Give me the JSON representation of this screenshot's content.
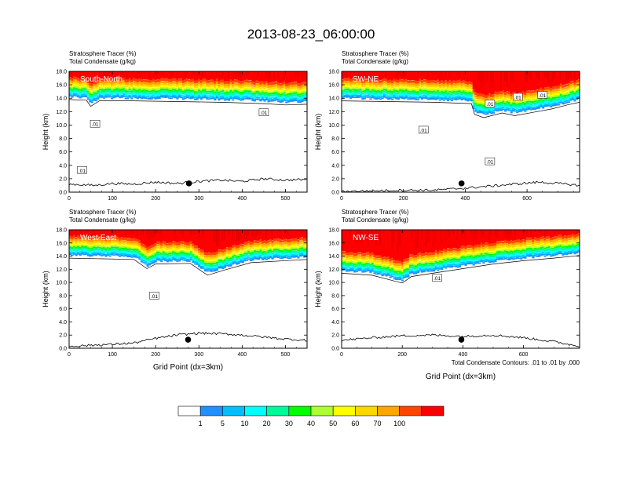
{
  "figure": {
    "title": "2013-08-23_06:00:00",
    "contour_note": "Total Condensate Contours: .01 to .01 by .000"
  },
  "chart_data": [
    {
      "type": "heatmap",
      "panel_label": "South-North",
      "subtitle_1": "Stratosphere Tracer   (%)",
      "subtitle_2": "Total Condensate   (g/kg)",
      "ylabel": "Height (km)",
      "xlabel": "",
      "xlim": [
        0,
        550
      ],
      "ylim": [
        0,
        18
      ],
      "x_ticks": [
        "0",
        "100",
        "200",
        "300",
        "400",
        "500"
      ],
      "y_ticks": [
        "0.0",
        "2.0",
        "4.0",
        "6.0",
        "8.0",
        "10.0",
        "12.0",
        "14.0",
        "16.0",
        "18.0"
      ],
      "tropopause_km": [
        [
          0,
          14.2
        ],
        [
          40,
          14.1
        ],
        [
          50,
          13.2
        ],
        [
          70,
          14.0
        ],
        [
          150,
          14.0
        ],
        [
          250,
          13.9
        ],
        [
          350,
          13.8
        ],
        [
          450,
          13.6
        ],
        [
          500,
          13.4
        ],
        [
          550,
          13.5
        ]
      ],
      "terrain_km": [
        [
          0,
          1.2
        ],
        [
          60,
          1.0
        ],
        [
          100,
          1.3
        ],
        [
          150,
          1.2
        ],
        [
          200,
          1.5
        ],
        [
          250,
          1.3
        ],
        [
          300,
          1.6
        ],
        [
          350,
          1.8
        ],
        [
          400,
          1.6
        ],
        [
          450,
          2.0
        ],
        [
          500,
          1.8
        ],
        [
          550,
          1.9
        ]
      ],
      "contour_labels": [
        {
          "text": ".01",
          "x": 60,
          "y": 10.2
        },
        {
          "text": ".01",
          "x": 30,
          "y": 3.3
        },
        {
          "text": ".01",
          "x": 450,
          "y": 11.9
        }
      ],
      "marker": {
        "x": 277,
        "y": 0.95
      }
    },
    {
      "type": "heatmap",
      "panel_label": "SW-NE",
      "subtitle_1": "Stratosphere Tracer   (%)",
      "subtitle_2": "Total Condensate   (g/kg)",
      "ylabel": "Height (km)",
      "xlabel": "",
      "xlim": [
        0,
        770
      ],
      "ylim": [
        0,
        18
      ],
      "x_ticks": [
        "0",
        "200",
        "400",
        "600"
      ],
      "y_ticks": [
        "0.0",
        "2.0",
        "4.0",
        "6.0",
        "8.0",
        "10.0",
        "12.0",
        "14.0",
        "16.0",
        "18.0"
      ],
      "tropopause_km": [
        [
          0,
          14.0
        ],
        [
          150,
          13.9
        ],
        [
          300,
          13.8
        ],
        [
          420,
          13.6
        ],
        [
          430,
          12.0
        ],
        [
          460,
          11.5
        ],
        [
          520,
          12.2
        ],
        [
          560,
          11.8
        ],
        [
          620,
          12.3
        ],
        [
          680,
          12.8
        ],
        [
          730,
          13.4
        ],
        [
          770,
          13.8
        ]
      ],
      "terrain_km": [
        [
          0,
          0.1
        ],
        [
          100,
          0.2
        ],
        [
          200,
          0.3
        ],
        [
          300,
          0.3
        ],
        [
          400,
          0.6
        ],
        [
          480,
          0.9
        ],
        [
          560,
          1.2
        ],
        [
          640,
          1.5
        ],
        [
          700,
          1.3
        ],
        [
          770,
          1.0
        ]
      ],
      "contour_labels": [
        {
          "text": ".01",
          "x": 265,
          "y": 9.3
        },
        {
          "text": ".01",
          "x": 480,
          "y": 13.2
        },
        {
          "text": ".01",
          "x": 570,
          "y": 14.2
        },
        {
          "text": ".01",
          "x": 650,
          "y": 14.5
        },
        {
          "text": ".01",
          "x": 480,
          "y": 4.6
        }
      ],
      "marker": {
        "x": 388,
        "y": 0.95
      }
    },
    {
      "type": "heatmap",
      "panel_label": "West-East",
      "subtitle_1": "Stratosphere Tracer   (%)",
      "subtitle_2": "Total Condensate   (g/kg)",
      "ylabel": "Height (km)",
      "xlabel": "Grid Point (dx=3km)",
      "xlim": [
        0,
        550
      ],
      "ylim": [
        0,
        18
      ],
      "x_ticks": [
        "0",
        "100",
        "200",
        "300",
        "400",
        "500"
      ],
      "y_ticks": [
        "0.0",
        "2.0",
        "4.0",
        "6.0",
        "8.0",
        "10.0",
        "12.0",
        "14.0",
        "16.0",
        "18.0"
      ],
      "tropopause_km": [
        [
          0,
          14.1
        ],
        [
          150,
          13.9
        ],
        [
          180,
          12.5
        ],
        [
          200,
          13.2
        ],
        [
          280,
          13.3
        ],
        [
          320,
          11.5
        ],
        [
          360,
          12.3
        ],
        [
          420,
          13.4
        ],
        [
          550,
          13.9
        ]
      ],
      "terrain_km": [
        [
          0,
          0.3
        ],
        [
          100,
          0.6
        ],
        [
          150,
          0.8
        ],
        [
          200,
          1.5
        ],
        [
          250,
          2.0
        ],
        [
          300,
          2.3
        ],
        [
          350,
          2.2
        ],
        [
          400,
          2.0
        ],
        [
          450,
          1.7
        ],
        [
          500,
          1.4
        ],
        [
          550,
          1.2
        ]
      ],
      "contour_labels": [
        {
          "text": ".01",
          "x": 197,
          "y": 8.0
        }
      ],
      "marker": {
        "x": 275,
        "y": 0.95
      }
    },
    {
      "type": "heatmap",
      "panel_label": "NW-SE",
      "subtitle_1": "Stratosphere Tracer   (%)",
      "subtitle_2": "Total Condensate   (g/kg)",
      "ylabel": "Height (km)",
      "xlabel": "Grid Point (dx=3km)",
      "xlim": [
        0,
        785
      ],
      "ylim": [
        0,
        18
      ],
      "x_ticks": [
        "0",
        "200",
        "400",
        "600"
      ],
      "y_ticks": [
        "0.0",
        "2.0",
        "4.0",
        "6.0",
        "8.0",
        "10.0",
        "12.0",
        "14.0",
        "16.0",
        "18.0"
      ],
      "tropopause_km": [
        [
          0,
          11.8
        ],
        [
          100,
          11.5
        ],
        [
          200,
          10.3
        ],
        [
          230,
          11.3
        ],
        [
          300,
          11.8
        ],
        [
          400,
          12.5
        ],
        [
          500,
          13.2
        ],
        [
          600,
          13.7
        ],
        [
          700,
          14.1
        ],
        [
          785,
          14.5
        ]
      ],
      "terrain_km": [
        [
          0,
          1.2
        ],
        [
          100,
          1.6
        ],
        [
          200,
          1.9
        ],
        [
          300,
          2.0
        ],
        [
          400,
          1.8
        ],
        [
          500,
          2.0
        ],
        [
          600,
          1.6
        ],
        [
          700,
          1.0
        ],
        [
          785,
          0.3
        ]
      ],
      "contour_labels": [
        {
          "text": ".01",
          "x": 315,
          "y": 10.7
        }
      ],
      "marker": {
        "x": 395,
        "y": 0.95
      }
    }
  ],
  "colorbar": {
    "labels": [
      "1",
      "5",
      "10",
      "20",
      "30",
      "40",
      "50",
      "60",
      "70",
      "100"
    ],
    "colors": [
      "#ffffff",
      "#1e90ff",
      "#00bfff",
      "#00ffff",
      "#00fa9a",
      "#00ff00",
      "#adff2f",
      "#ffff00",
      "#ffd700",
      "#ffa500",
      "#ff4500",
      "#ff0000"
    ]
  }
}
